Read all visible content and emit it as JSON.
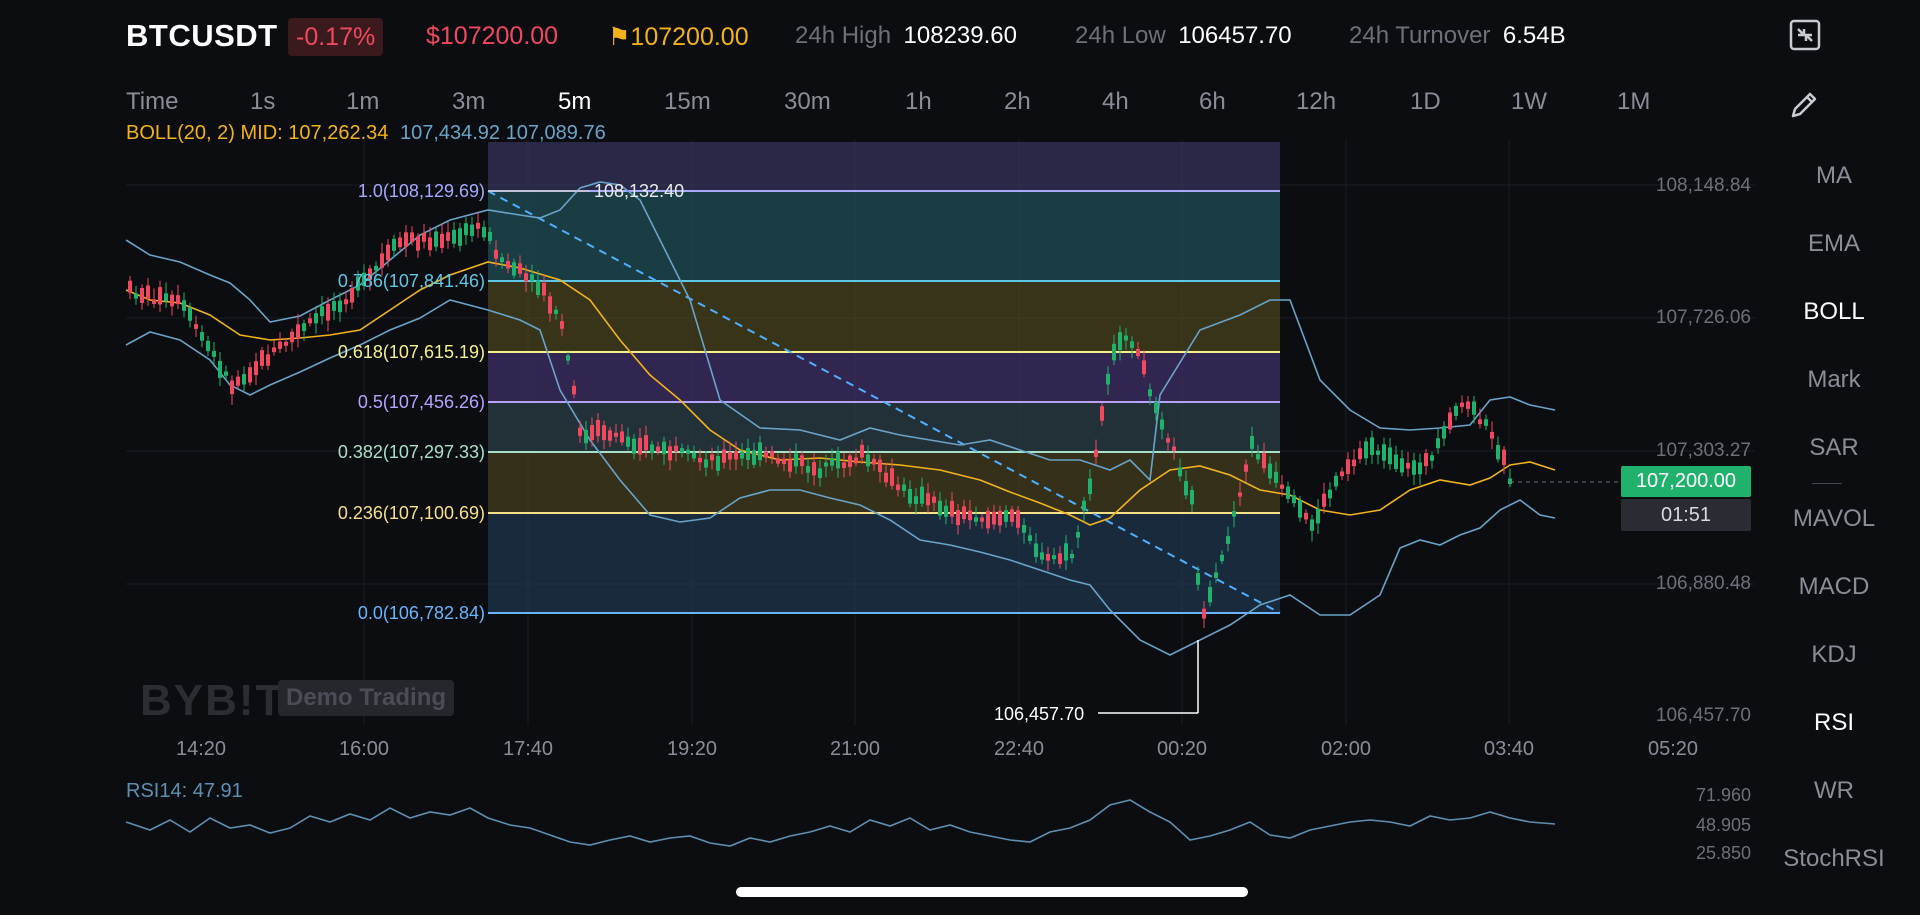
{
  "header": {
    "symbol": "BTCUSDT",
    "change": "-0.17%",
    "last_price": "$107200.00",
    "mark_price": "107200.00",
    "stats": [
      {
        "label": "24h High",
        "value": "108239.60"
      },
      {
        "label": "24h Low",
        "value": "106457.70"
      },
      {
        "label": "24h Turnover",
        "value": "6.54B"
      }
    ]
  },
  "timeframes": [
    "Time",
    "1s",
    "1m",
    "3m",
    "5m",
    "15m",
    "30m",
    "1h",
    "2h",
    "4h",
    "6h",
    "12h",
    "1D",
    "1W",
    "1M"
  ],
  "active_timeframe": "5m",
  "sidebar": {
    "icons": [
      "fullscreen-exit-icon",
      "pencil-icon"
    ],
    "items": [
      "MA",
      "EMA",
      "BOLL",
      "Mark",
      "SAR",
      "MAVOL",
      "MACD",
      "KDJ",
      "RSI",
      "WR",
      "StochRSI"
    ],
    "active": [
      "BOLL",
      "RSI"
    ]
  },
  "indicators": {
    "boll_label": "BOLL(20, 2)",
    "boll_mid": "MID: 107,262.34",
    "boll_upper": "107,434.92",
    "boll_lower": "107,089.76",
    "rsi_label": "RSI14: 47.91"
  },
  "price_axis": [
    "108,148.84",
    "107,726.06",
    "107,303.27",
    "106,880.48",
    "106,457.70"
  ],
  "rsi_axis": [
    "71.960",
    "48.905",
    "25.850"
  ],
  "time_axis": [
    "14:20",
    "16:00",
    "17:40",
    "19:20",
    "21:00",
    "22:40",
    "00:20",
    "02:00",
    "03:40",
    "05:20"
  ],
  "current_price": "107,200.00",
  "countdown": "01:51",
  "fib_levels": [
    {
      "label": "1.0(108,129.69)",
      "color": "#a7a8ff"
    },
    {
      "label": "0.786(107,841.46)",
      "color": "#5ec8e8"
    },
    {
      "label": "0.618(107,615.19)",
      "color": "#f6f08a"
    },
    {
      "label": "0.5(107,456.26)",
      "color": "#b7a2ff"
    },
    {
      "label": "0.382(107,297.33)",
      "color": "#a8e0c8"
    },
    {
      "label": "0.236(107,100.69)",
      "color": "#f6e08a"
    },
    {
      "label": "0.0(106,782.84)",
      "color": "#6ab4ff"
    }
  ],
  "annotations": {
    "high_label": "108,132.40",
    "low_label": "106,457.70"
  },
  "watermark": {
    "brand": "BYB!T",
    "badge": "Demo Trading"
  },
  "colors": {
    "up": "#20b26c",
    "down": "#f0485e",
    "boll_mid": "#f2b21c",
    "boll_band": "#6aa3c8",
    "accent": "#f2b21c"
  }
}
